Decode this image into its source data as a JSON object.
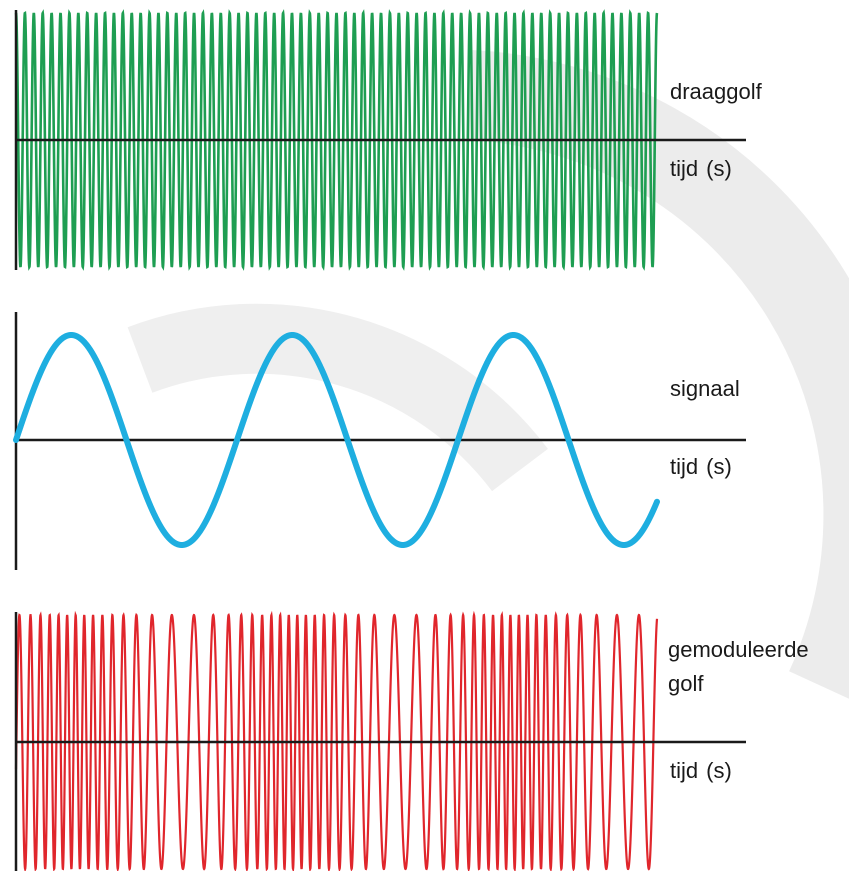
{
  "panels": {
    "carrier": {
      "label": "draaggolf",
      "axis_label": "tijd",
      "axis_unit": "(s)",
      "color": "#1e9e52",
      "cycles": 72,
      "amplitude_fraction": 1.0
    },
    "signal": {
      "label": "signaal",
      "axis_label": "tijd",
      "axis_unit": "(s)",
      "color": "#1eaee0",
      "cycles": 2.9,
      "amplitude_fraction": 0.8
    },
    "modulated": {
      "label_line1": "gemoduleerde",
      "label_line2": "golf",
      "axis_label": "tijd",
      "axis_unit": "(s)",
      "color": "#e0262c",
      "base_cycles": 52,
      "deviation_fraction": 0.45,
      "amplitude_fraction": 1.0
    }
  },
  "background_watermark_color": "#ececec"
}
